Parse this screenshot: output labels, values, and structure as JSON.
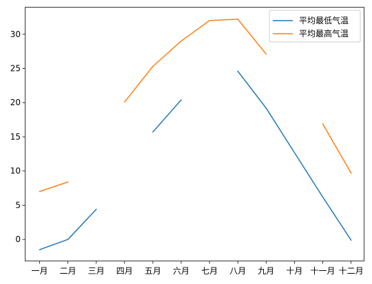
{
  "chart_data": {
    "type": "line",
    "categories": [
      "一月",
      "二月",
      "三月",
      "四月",
      "五月",
      "六月",
      "七月",
      "八月",
      "九月",
      "十月",
      "十一月",
      "十二月"
    ],
    "series": [
      {
        "name": "平均最低气温",
        "color": "#1f77b4",
        "values": [
          -1.5,
          0.0,
          4.4,
          null,
          15.7,
          20.4,
          null,
          24.6,
          19.2,
          12.7,
          6.2,
          -0.1
        ]
      },
      {
        "name": "平均最高气温",
        "color": "#ff7f0e",
        "values": [
          7.0,
          8.4,
          null,
          20.1,
          25.3,
          29.0,
          32.0,
          32.2,
          27.1,
          null,
          16.9,
          9.7
        ]
      }
    ],
    "yticks": [
      0,
      5,
      10,
      15,
      20,
      25,
      30
    ],
    "ylim": [
      -3.2,
      34.0
    ],
    "legend": "top-right",
    "grid": false
  }
}
